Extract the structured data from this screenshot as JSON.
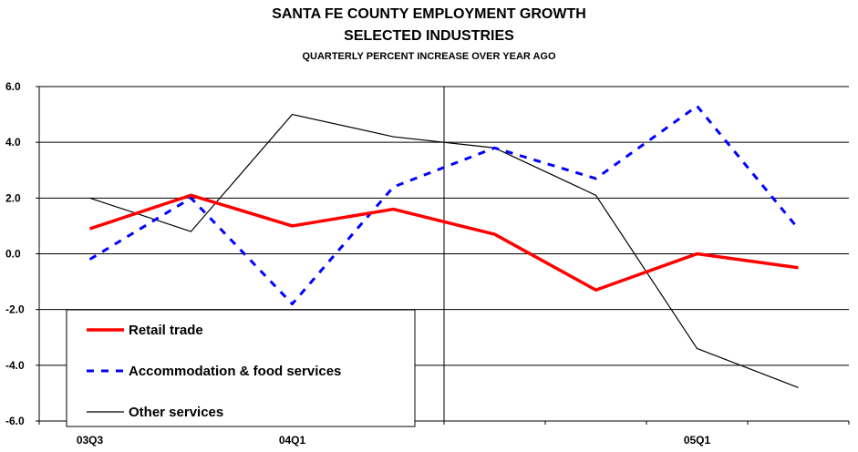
{
  "chart_data": {
    "type": "line",
    "title": "SANTA FE COUNTY EMPLOYMENT GROWTH",
    "subtitle": "SELECTED INDUSTRIES",
    "subsubtitle": "QUARTERLY PERCENT INCREASE OVER YEAR AGO",
    "xlabel": "",
    "ylabel": "",
    "ylim": [
      -6,
      6
    ],
    "yticks": [
      "6.0",
      "4.0",
      "2.0",
      "0.0",
      "-2.0",
      "-4.0",
      "-6.0"
    ],
    "categories": [
      "03Q3",
      "",
      "04Q1",
      "",
      "",
      "",
      "05Q1",
      ""
    ],
    "series": [
      {
        "name": "Retail trade",
        "color": "#ff0000",
        "style": "solid-thick",
        "values": [
          0.9,
          2.1,
          1.0,
          1.6,
          0.7,
          -1.3,
          0.0,
          -0.5
        ]
      },
      {
        "name": "Accommodation & food services",
        "color": "#0000ff",
        "style": "dashed",
        "values": [
          -0.2,
          2.0,
          -1.8,
          2.4,
          3.8,
          2.7,
          5.3,
          0.9
        ]
      },
      {
        "name": "Other services",
        "color": "#000000",
        "style": "solid-thin",
        "values": [
          2.0,
          0.8,
          5.0,
          4.2,
          3.8,
          2.1,
          -3.4,
          -4.8
        ]
      }
    ],
    "grid": true,
    "legend": "bottom-left"
  }
}
